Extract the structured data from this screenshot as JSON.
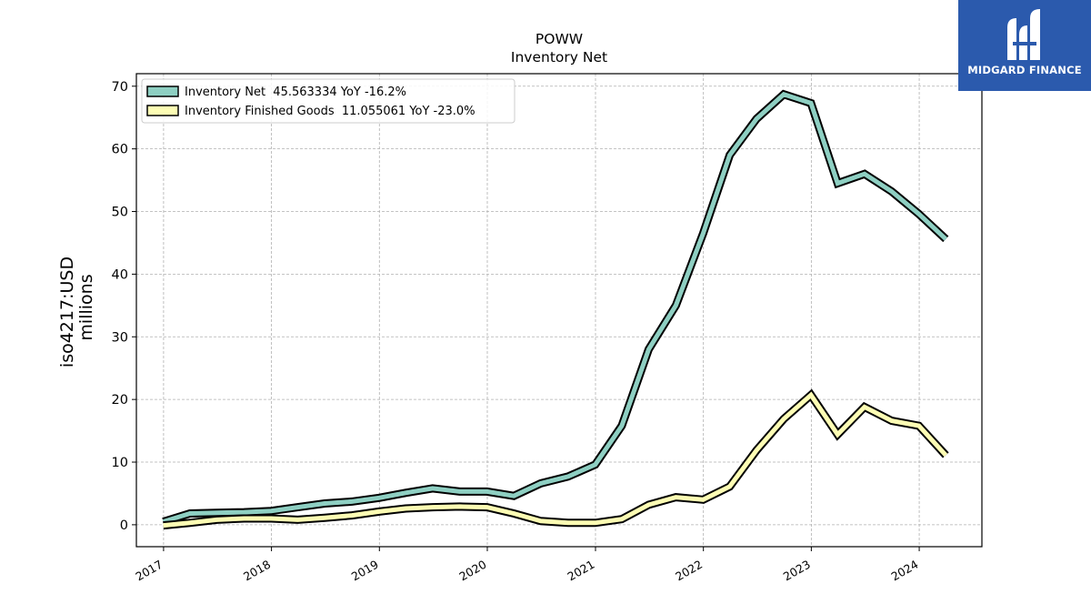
{
  "brand": {
    "name": "MIDGARD FINANCE",
    "icon": "midgard-logo-icon",
    "color": "#2b5aad"
  },
  "chart_data": {
    "type": "line",
    "title": "POWW",
    "subtitle": "Inventory Net",
    "xlabel": "",
    "ylabel": "iso4217:USD",
    "ylabel2": "millions",
    "xlim": [
      "2016-10-01",
      "2024-07-31"
    ],
    "ylim": [
      -3.5,
      72
    ],
    "yticks": [
      0,
      10,
      20,
      30,
      40,
      50,
      60,
      70
    ],
    "xticks": [
      "2017",
      "2018",
      "2019",
      "2020",
      "2021",
      "2022",
      "2023",
      "2024"
    ],
    "grid": true,
    "legend_position": "top-left",
    "series": [
      {
        "name": "Inventory Net  45.563334 YoY -16.2%",
        "color": "#8ecfc2",
        "points": [
          [
            "2016-12-31",
            0.5
          ],
          [
            "2017-03-31",
            1.8
          ],
          [
            "2017-06-30",
            1.9
          ],
          [
            "2017-09-30",
            2.0
          ],
          [
            "2017-12-31",
            2.2
          ],
          [
            "2018-03-31",
            2.8
          ],
          [
            "2018-06-30",
            3.4
          ],
          [
            "2018-09-30",
            3.7
          ],
          [
            "2018-12-31",
            4.3
          ],
          [
            "2019-03-31",
            5.1
          ],
          [
            "2019-06-30",
            5.8
          ],
          [
            "2019-09-30",
            5.3
          ],
          [
            "2019-12-31",
            5.3
          ],
          [
            "2020-03-31",
            4.6
          ],
          [
            "2020-06-30",
            6.6
          ],
          [
            "2020-09-30",
            7.7
          ],
          [
            "2020-12-31",
            9.6
          ],
          [
            "2021-03-31",
            15.8
          ],
          [
            "2021-06-30",
            28.0
          ],
          [
            "2021-09-30",
            35.0
          ],
          [
            "2021-12-31",
            46.5
          ],
          [
            "2022-03-31",
            59.0
          ],
          [
            "2022-06-30",
            64.8
          ],
          [
            "2022-09-30",
            68.7
          ],
          [
            "2022-12-31",
            67.3
          ],
          [
            "2023-03-31",
            54.5
          ],
          [
            "2023-06-30",
            56.0
          ],
          [
            "2023-09-30",
            53.2
          ],
          [
            "2023-12-31",
            49.6
          ],
          [
            "2024-03-31",
            45.6
          ]
        ]
      },
      {
        "name": "Inventory Finished Goods  11.055061 YoY -23.0%",
        "color": "#fdfdb4",
        "points": [
          [
            "2016-12-31",
            -0.1
          ],
          [
            "2017-03-31",
            0.3
          ],
          [
            "2017-06-30",
            0.8
          ],
          [
            "2017-09-30",
            1.0
          ],
          [
            "2017-12-31",
            1.0
          ],
          [
            "2018-03-31",
            0.8
          ],
          [
            "2018-06-30",
            1.1
          ],
          [
            "2018-09-30",
            1.5
          ],
          [
            "2018-12-31",
            2.1
          ],
          [
            "2019-03-31",
            2.6
          ],
          [
            "2019-06-30",
            2.8
          ],
          [
            "2019-09-30",
            2.9
          ],
          [
            "2019-12-31",
            2.8
          ],
          [
            "2020-03-31",
            1.8
          ],
          [
            "2020-06-30",
            0.6
          ],
          [
            "2020-09-30",
            0.3
          ],
          [
            "2020-12-31",
            0.3
          ],
          [
            "2021-03-31",
            0.9
          ],
          [
            "2021-06-30",
            3.2
          ],
          [
            "2021-09-30",
            4.4
          ],
          [
            "2021-12-31",
            4.0
          ],
          [
            "2022-03-31",
            6.1
          ],
          [
            "2022-06-30",
            11.9
          ],
          [
            "2022-09-30",
            16.9
          ],
          [
            "2022-12-31",
            20.7
          ],
          [
            "2023-03-31",
            14.4
          ],
          [
            "2023-06-30",
            18.8
          ],
          [
            "2023-09-30",
            16.6
          ],
          [
            "2023-12-31",
            15.8
          ],
          [
            "2024-03-31",
            11.1
          ]
        ]
      }
    ]
  }
}
